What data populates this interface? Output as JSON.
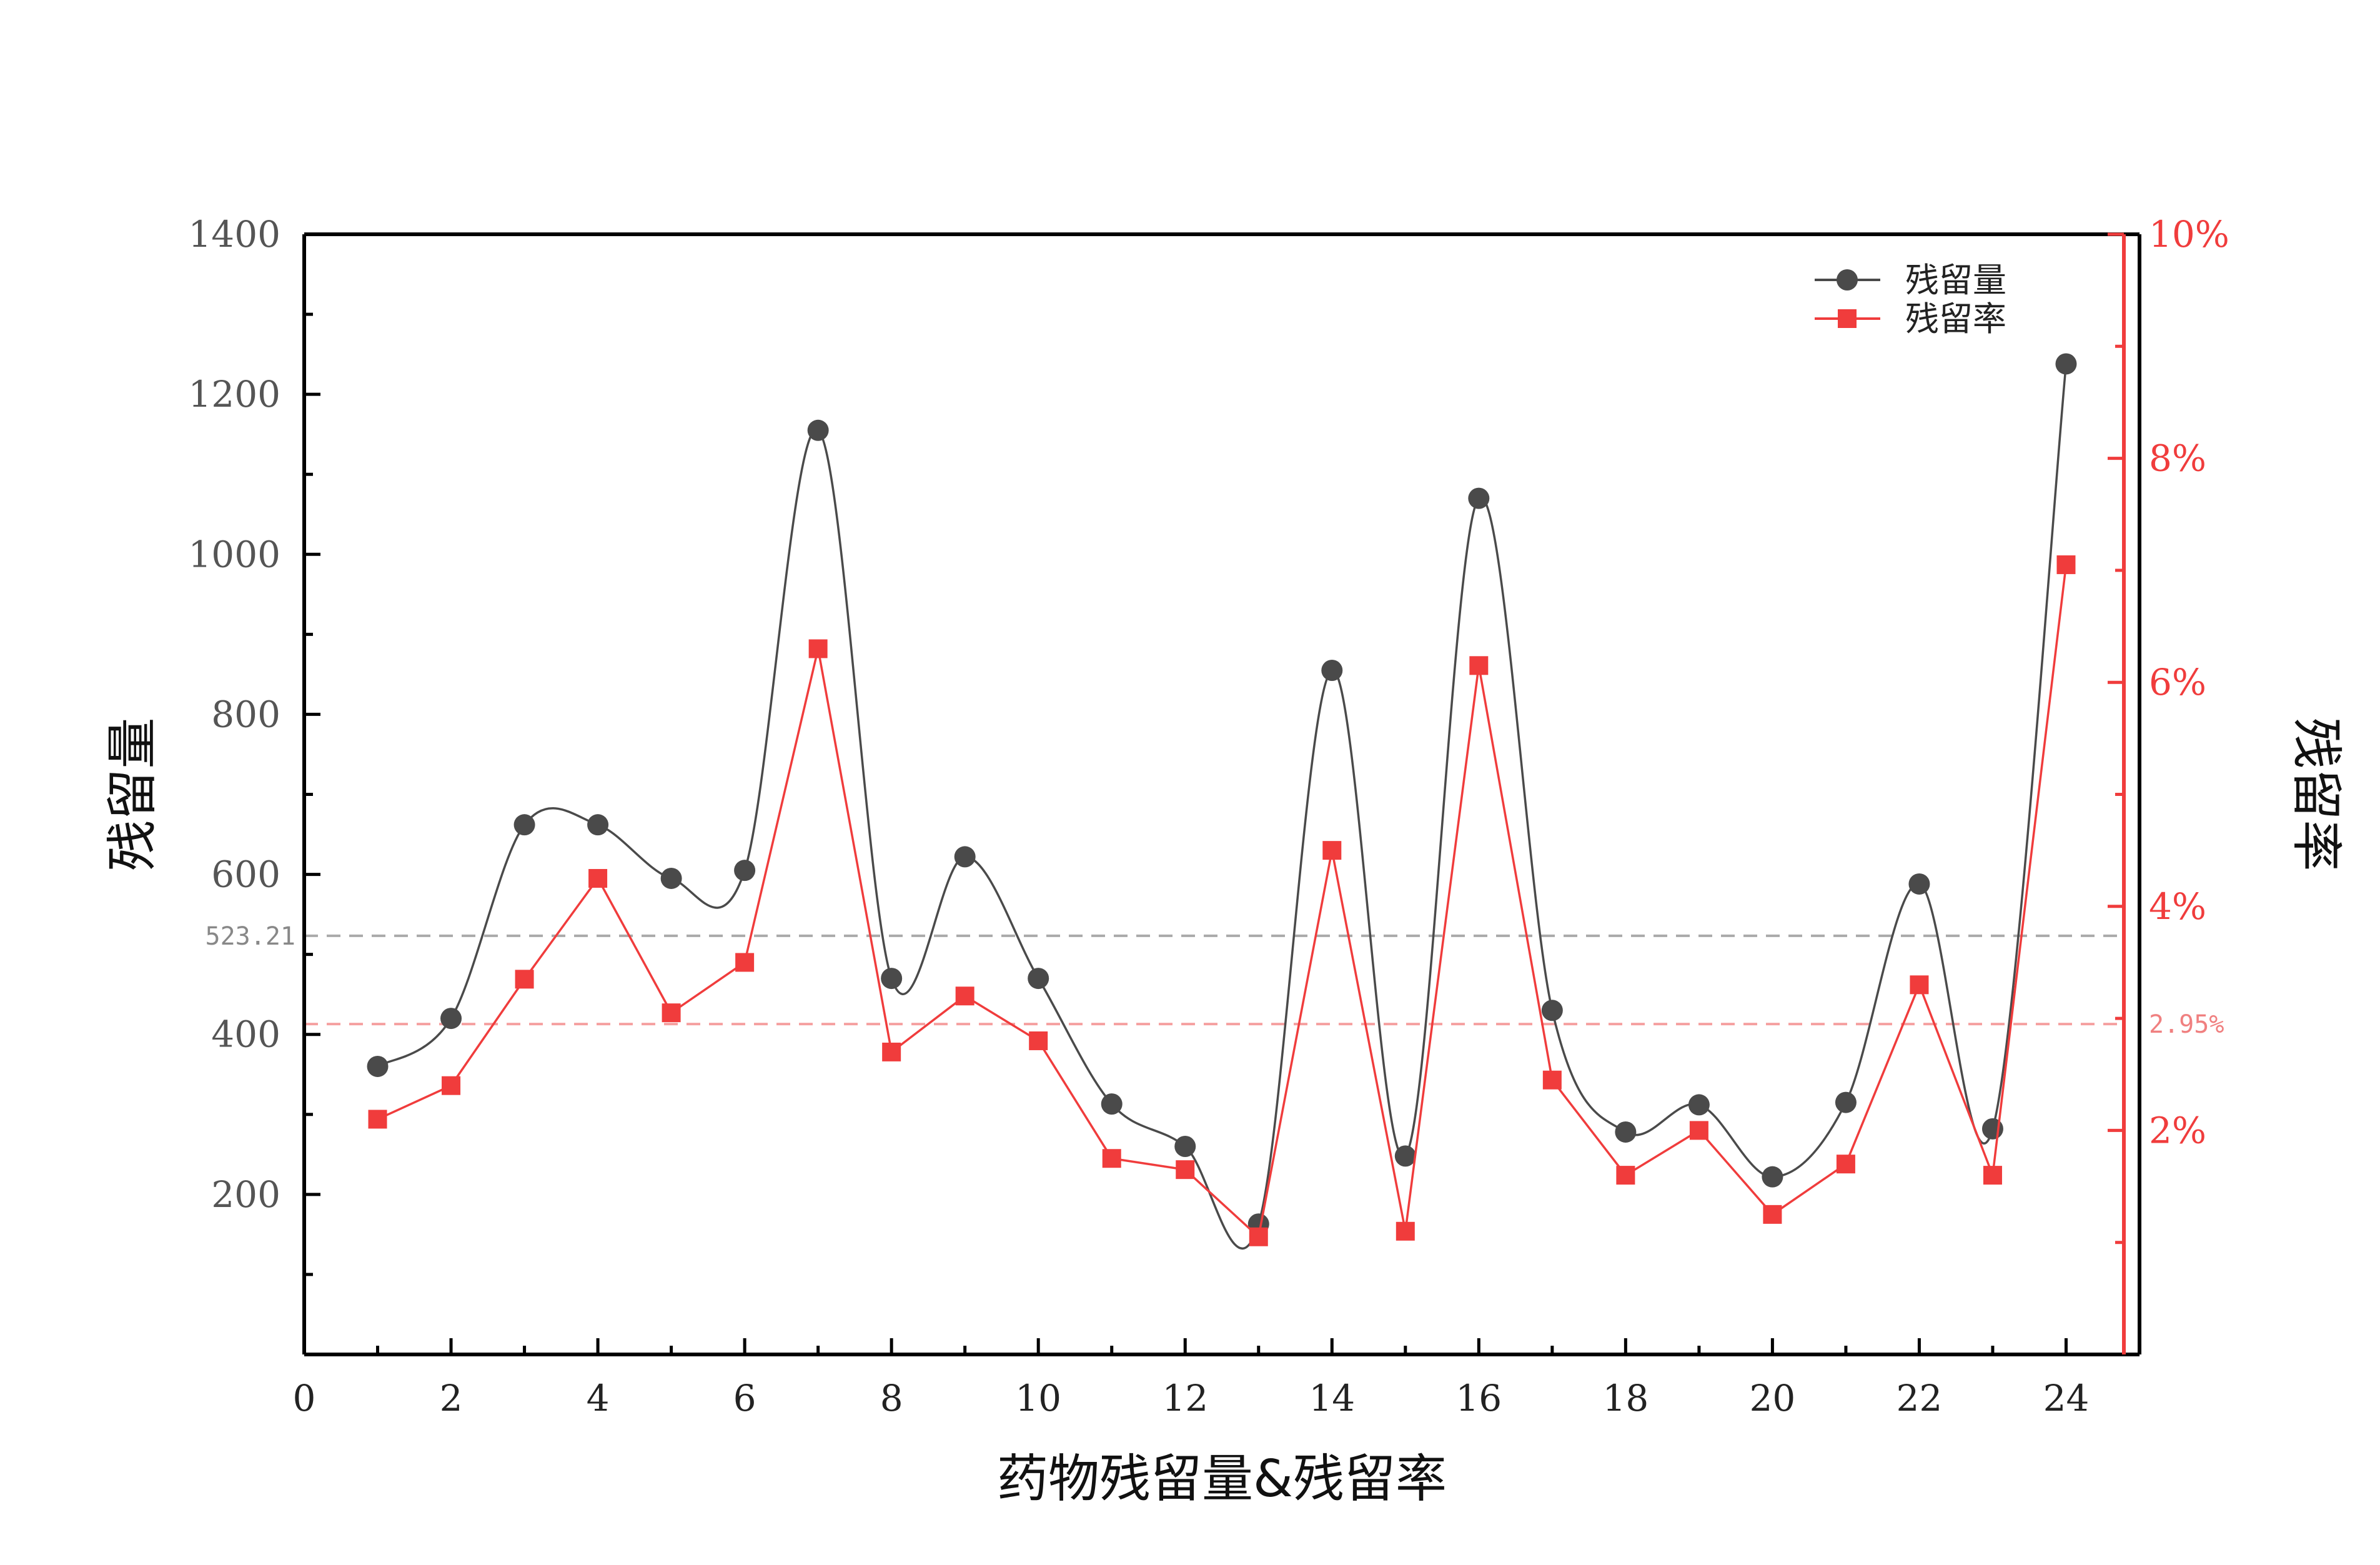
{
  "chart_data": {
    "type": "line",
    "xlabel": "药物残留量&残留率",
    "ylabel": "残留量",
    "y2label": "残留率",
    "xlim": [
      0,
      25
    ],
    "ylim": [
      0,
      1400
    ],
    "y2lim": [
      0,
      10
    ],
    "x_ticks": [
      "0",
      "2",
      "4",
      "6",
      "8",
      "10",
      "12",
      "14",
      "16",
      "18",
      "20",
      "22",
      "24"
    ],
    "y_ticks": [
      "200",
      "400",
      "600",
      "800",
      "1000",
      "1200",
      "1400"
    ],
    "y2_ticks": [
      "2%",
      "4%",
      "6%",
      "8%",
      "10%"
    ],
    "legend_position": "top-right",
    "colors": {
      "residue": "#4a4a4a",
      "rate": "#f03c3c",
      "ref_residue": "#aaaaaa",
      "ref_rate": "#f5a0a0",
      "frame": "#000000"
    },
    "x": [
      1,
      2,
      3,
      4,
      5,
      6,
      7,
      8,
      9,
      10,
      11,
      12,
      13,
      14,
      15,
      16,
      17,
      18,
      19,
      20,
      21,
      22,
      23,
      24
    ],
    "series": [
      {
        "name": "残留量",
        "axis": "left",
        "marker": "circle",
        "smooth": true,
        "values": [
          360,
          420,
          662,
          662,
          595,
          605,
          1155,
          470,
          622,
          470,
          313,
          260,
          163,
          855,
          248,
          1070,
          430,
          278,
          312,
          222,
          315,
          588,
          282,
          1238
        ]
      },
      {
        "name": "残留率",
        "axis": "right",
        "marker": "square",
        "smooth": false,
        "values": [
          2.1,
          2.4,
          3.35,
          4.25,
          3.05,
          3.5,
          6.3,
          2.7,
          3.2,
          2.8,
          1.75,
          1.65,
          1.05,
          4.5,
          1.1,
          6.15,
          2.45,
          1.6,
          2.0,
          1.25,
          1.7,
          3.3,
          1.6,
          7.05
        ]
      }
    ],
    "reference_lines": [
      {
        "axis": "left",
        "value": 523.21,
        "label": "523.21"
      },
      {
        "axis": "right",
        "value": 2.95,
        "label": "2.95%"
      }
    ]
  }
}
